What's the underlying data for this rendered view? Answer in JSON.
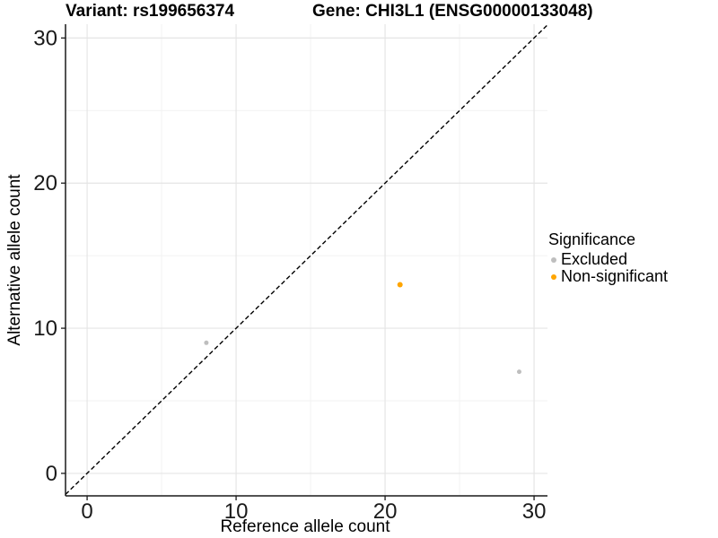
{
  "titles": {
    "variant": "Variant: rs199656374",
    "gene": "Gene: CHI3L1 (ENSG00000133048)"
  },
  "chart_data": {
    "type": "scatter",
    "title": "Variant: rs199656374 / Gene: CHI3L1 (ENSG00000133048)",
    "xlabel": "Reference allele count",
    "ylabel": "Alternative allele count",
    "xlim": [
      -1.45,
      30.9
    ],
    "ylim": [
      -1.55,
      30.95
    ],
    "x_ticks": [
      0,
      10,
      20,
      30
    ],
    "y_ticks": [
      0,
      10,
      20,
      30
    ],
    "x_minor_ticks": [
      5,
      15,
      25
    ],
    "y_minor_ticks": [
      5,
      15,
      25
    ],
    "grid": "major and minor, light gray on white",
    "identity_line": {
      "equation": "y = x",
      "style": "dashed",
      "color": "#000000"
    },
    "series": [
      {
        "name": "Excluded",
        "color": "#BEBEBE",
        "radius": 2.5,
        "points": [
          {
            "x": 8,
            "y": 9
          },
          {
            "x": 29,
            "y": 7
          }
        ]
      },
      {
        "name": "Non-significant",
        "color": "#FFA500",
        "radius": 3,
        "points": [
          {
            "x": 21,
            "y": 13
          }
        ]
      }
    ],
    "legend": {
      "title": "Significance",
      "position": "right",
      "entries": [
        {
          "label": "Excluded",
          "color": "#BEBEBE"
        },
        {
          "label": "Non-significant",
          "color": "#FFA500"
        }
      ]
    },
    "colors": {
      "grid_major": "#E5E5E5",
      "grid_minor": "#F2F2F2",
      "axis": "#1A1A1A"
    }
  }
}
